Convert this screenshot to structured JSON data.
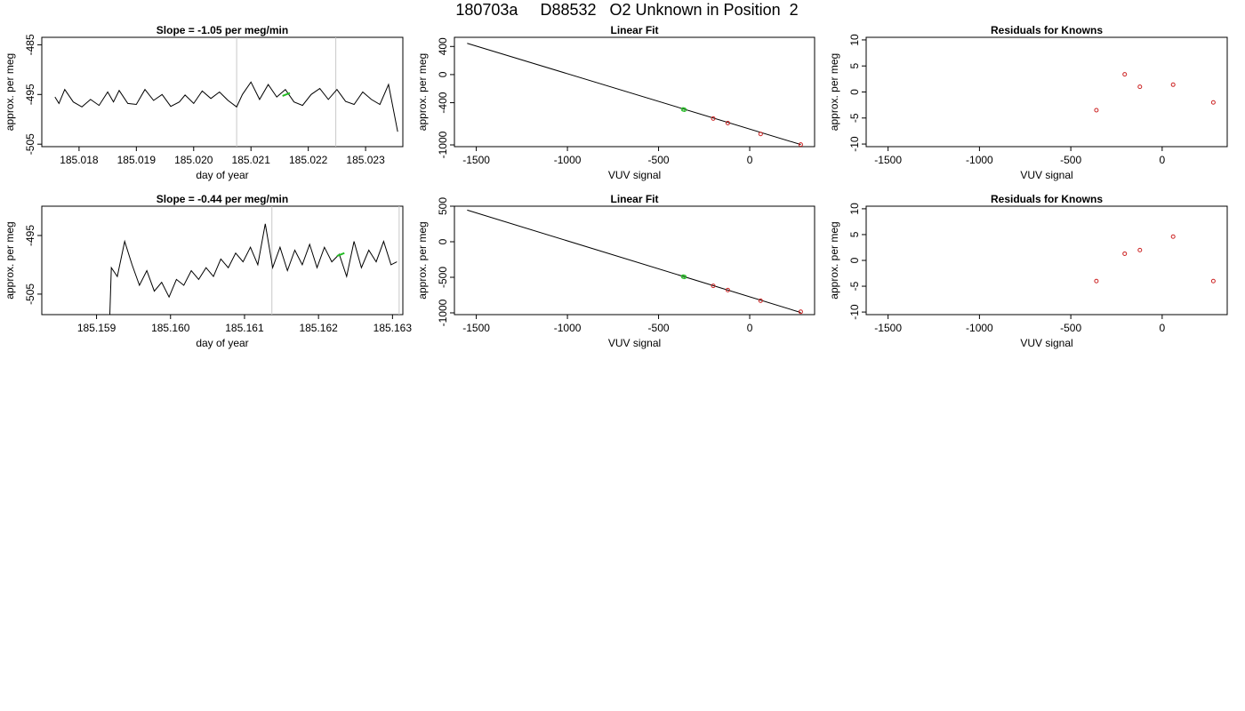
{
  "page": {
    "title": "180703a     D88532   O2 Unknown in Position  2"
  },
  "chart_data": [
    {
      "type": "line",
      "title": "Slope =  -1.05  per meg/min",
      "xlabel": "day of year",
      "ylabel": "approx. per meg",
      "xlim": [
        185.01735,
        185.02365
      ],
      "ylim": [
        -505.5,
        -483.5
      ],
      "xticks": [
        185.018,
        185.019,
        185.02,
        185.021,
        185.022,
        185.023
      ],
      "xtick_labels": [
        "185.018",
        "185.019",
        "185.020",
        "185.021",
        "185.022",
        "185.023"
      ],
      "yticks": [
        -485,
        -495,
        -505
      ],
      "ytick_labels": [
        "-485",
        "-495",
        "-505"
      ],
      "vlines": [
        185.02075,
        185.02248
      ],
      "highlight": {
        "x": [
          185.02155,
          185.02168
        ],
        "y": [
          -495.3,
          -494.7
        ]
      },
      "x": [
        185.01758,
        185.02356
      ],
      "points": [
        [
          185.01758,
          -495.5
        ],
        [
          185.01765,
          -496.8
        ],
        [
          185.01775,
          -494.0
        ],
        [
          185.0179,
          -496.5
        ],
        [
          185.01805,
          -497.5
        ],
        [
          185.0182,
          -496.0
        ],
        [
          185.01835,
          -497.2
        ],
        [
          185.0185,
          -494.5
        ],
        [
          185.0186,
          -496.5
        ],
        [
          185.0187,
          -494.2
        ],
        [
          185.01885,
          -496.8
        ],
        [
          185.019,
          -497.0
        ],
        [
          185.01915,
          -494.0
        ],
        [
          185.0193,
          -496.2
        ],
        [
          185.01945,
          -495.0
        ],
        [
          185.0196,
          -497.4
        ],
        [
          185.01975,
          -496.5
        ],
        [
          185.01985,
          -495.1
        ],
        [
          185.02,
          -496.8
        ],
        [
          185.02015,
          -494.3
        ],
        [
          185.0203,
          -495.8
        ],
        [
          185.02045,
          -494.5
        ],
        [
          185.0206,
          -496.2
        ],
        [
          185.02075,
          -497.5
        ],
        [
          185.02085,
          -495.0
        ],
        [
          185.021,
          -492.5
        ],
        [
          185.02115,
          -496.0
        ],
        [
          185.0213,
          -493.0
        ],
        [
          185.02145,
          -495.5
        ],
        [
          185.0216,
          -494.0
        ],
        [
          185.02175,
          -496.5
        ],
        [
          185.0219,
          -497.2
        ],
        [
          185.02205,
          -495.0
        ],
        [
          185.0222,
          -493.8
        ],
        [
          185.02235,
          -496.0
        ],
        [
          185.0225,
          -494.0
        ],
        [
          185.02265,
          -496.4
        ],
        [
          185.0228,
          -497.0
        ],
        [
          185.02295,
          -494.5
        ],
        [
          185.0231,
          -496.0
        ],
        [
          185.02325,
          -497.0
        ],
        [
          185.0234,
          -493.0
        ],
        [
          185.02356,
          -502.5
        ]
      ]
    },
    {
      "type": "scatter",
      "title": "Linear Fit",
      "xlabel": "VUV signal",
      "ylabel": "approx. per meg",
      "xlim": [
        -1620,
        356
      ],
      "ylim": [
        -1025,
        530
      ],
      "xticks": [
        -1500,
        -1000,
        -500,
        0
      ],
      "xtick_labels": [
        "-1500",
        "-1000",
        "-500",
        "0"
      ],
      "yticks": [
        400,
        0,
        -400,
        -1000
      ],
      "ytick_labels": [
        "400",
        "0",
        "-400",
        "-1000"
      ],
      "fit_line": {
        "x": [
          -1550,
          280
        ],
        "y": [
          445,
          -995
        ]
      },
      "knowns": {
        "x": [
          -200,
          -120,
          60,
          280
        ],
        "y": [
          -625,
          -690,
          -845,
          -995
        ]
      },
      "unknowns": {
        "x": [
          -365,
          -358
        ],
        "y": [
          -495,
          -500
        ]
      }
    },
    {
      "type": "scatter",
      "title": "Residuals for Knowns",
      "xlabel": "VUV signal",
      "ylabel": "approx. per meg",
      "xlim": [
        -1620,
        356
      ],
      "ylim": [
        -10.5,
        10.5
      ],
      "xticks": [
        -1500,
        -1000,
        -500,
        0
      ],
      "xtick_labels": [
        "-1500",
        "-1000",
        "-500",
        "0"
      ],
      "yticks": [
        10,
        5,
        0,
        -5,
        -10
      ],
      "ytick_labels": [
        "10",
        "5",
        "0",
        "-5",
        "-10"
      ],
      "knowns": {
        "x": [
          -360,
          -205,
          -122,
          60,
          280
        ],
        "y": [
          -3.5,
          3.4,
          1.0,
          1.4,
          -2.0
        ]
      }
    },
    {
      "type": "line",
      "title": "Slope =  -0.44  per meg/min",
      "xlabel": "day of year",
      "ylabel": "approx. per meg",
      "xlim": [
        185.15826,
        185.16314
      ],
      "ylim": [
        -508.5,
        -490
      ],
      "xticks": [
        185.159,
        185.16,
        185.161,
        185.162,
        185.163
      ],
      "xtick_labels": [
        "185.159",
        "185.160",
        "185.161",
        "185.162",
        "185.163"
      ],
      "yticks": [
        -495,
        -505
      ],
      "ytick_labels": [
        "-495",
        "-505"
      ],
      "vlines": [
        185.16137,
        185.16309
      ],
      "highlight": {
        "x": [
          185.16225,
          185.16235
        ],
        "y": [
          -498.5,
          -498.0
        ]
      },
      "points": [
        [
          185.15918,
          -508.5
        ],
        [
          185.1592,
          -500.5
        ],
        [
          185.15928,
          -502.0
        ],
        [
          185.15938,
          -496.0
        ],
        [
          185.15948,
          -500.0
        ],
        [
          185.15958,
          -503.5
        ],
        [
          185.15968,
          -501.0
        ],
        [
          185.15978,
          -504.5
        ],
        [
          185.15988,
          -503.0
        ],
        [
          185.15998,
          -505.5
        ],
        [
          185.16008,
          -502.5
        ],
        [
          185.16018,
          -503.5
        ],
        [
          185.16028,
          -501.0
        ],
        [
          185.16038,
          -502.5
        ],
        [
          185.16048,
          -500.5
        ],
        [
          185.16058,
          -502.0
        ],
        [
          185.16068,
          -499.0
        ],
        [
          185.16078,
          -500.5
        ],
        [
          185.16088,
          -498.0
        ],
        [
          185.16098,
          -499.5
        ],
        [
          185.16108,
          -497.0
        ],
        [
          185.16118,
          -500.0
        ],
        [
          185.16128,
          -493.0
        ],
        [
          185.16138,
          -500.5
        ],
        [
          185.16148,
          -497.0
        ],
        [
          185.16158,
          -501.0
        ],
        [
          185.16168,
          -497.5
        ],
        [
          185.16178,
          -500.0
        ],
        [
          185.16188,
          -496.5
        ],
        [
          185.16198,
          -500.5
        ],
        [
          185.16208,
          -497.0
        ],
        [
          185.16218,
          -499.5
        ],
        [
          185.16228,
          -498.2
        ],
        [
          185.16238,
          -502.0
        ],
        [
          185.16248,
          -496.0
        ],
        [
          185.16258,
          -500.5
        ],
        [
          185.16268,
          -497.5
        ],
        [
          185.16278,
          -499.5
        ],
        [
          185.16288,
          -496.0
        ],
        [
          185.16298,
          -500.0
        ],
        [
          185.16306,
          -499.5
        ]
      ]
    },
    {
      "type": "scatter",
      "title": "Linear Fit",
      "xlabel": "VUV signal",
      "ylabel": "approx. per meg",
      "xlim": [
        -1620,
        356
      ],
      "ylim": [
        -1025,
        500
      ],
      "xticks": [
        -1500,
        -1000,
        -500,
        0
      ],
      "xtick_labels": [
        "-1500",
        "-1000",
        "-500",
        "0"
      ],
      "yticks": [
        500,
        0,
        -500,
        -1000
      ],
      "ytick_labels": [
        "500",
        "0",
        "-500",
        "-1000"
      ],
      "fit_line": {
        "x": [
          -1550,
          280
        ],
        "y": [
          445,
          -995
        ]
      },
      "knowns": {
        "x": [
          -200,
          -120,
          60,
          280
        ],
        "y": [
          -620,
          -680,
          -830,
          -985
        ]
      },
      "unknowns": {
        "x": [
          -365,
          -358
        ],
        "y": [
          -490,
          -495
        ]
      }
    },
    {
      "type": "scatter",
      "title": "Residuals for Knowns",
      "xlabel": "VUV signal",
      "ylabel": "approx. per meg",
      "xlim": [
        -1620,
        356
      ],
      "ylim": [
        -10.5,
        10.5
      ],
      "xticks": [
        -1500,
        -1000,
        -500,
        0
      ],
      "xtick_labels": [
        "-1500",
        "-1000",
        "-500",
        "0"
      ],
      "yticks": [
        10,
        5,
        0,
        -5,
        -10
      ],
      "ytick_labels": [
        "10",
        "5",
        "0",
        "-5",
        "-10"
      ],
      "knowns": {
        "x": [
          -360,
          -205,
          -122,
          60,
          280
        ],
        "y": [
          -4.0,
          1.3,
          2.0,
          4.6,
          -4.0
        ]
      }
    }
  ]
}
